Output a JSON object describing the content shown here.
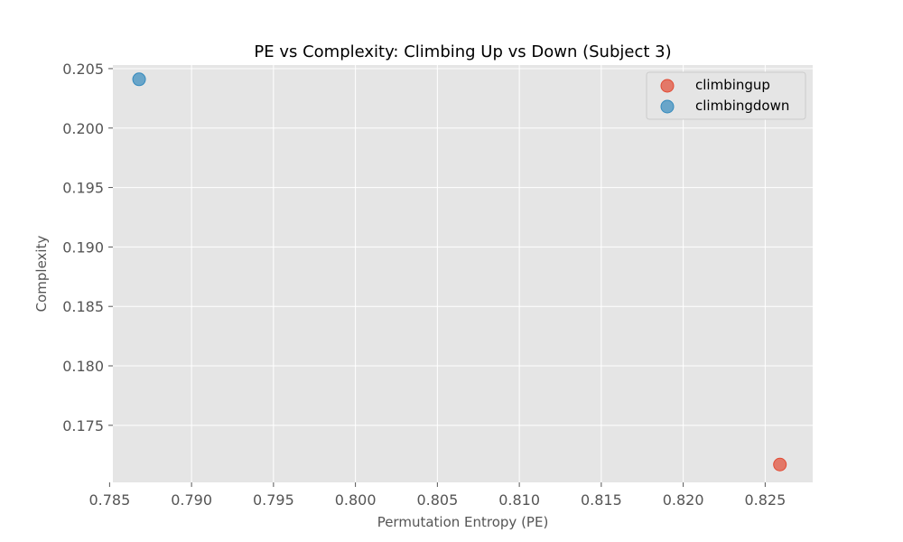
{
  "chart_data": {
    "type": "scatter",
    "title": "PE vs Complexity: Climbing Up vs Down (Subject 3)",
    "xlabel": "Permutation Entropy (PE)",
    "ylabel": "Complexity",
    "xlim": [
      0.7852,
      0.8279
    ],
    "ylim": [
      0.1702,
      0.2053
    ],
    "xticks": [
      "0.785",
      "0.790",
      "0.795",
      "0.800",
      "0.805",
      "0.810",
      "0.815",
      "0.820",
      "0.825"
    ],
    "yticks": [
      "0.175",
      "0.180",
      "0.185",
      "0.190",
      "0.195",
      "0.200",
      "0.205"
    ],
    "grid": true,
    "legend_position": "top-right",
    "series": [
      {
        "name": "climbingup",
        "color": "#E24A33",
        "points": [
          {
            "x": 0.8259,
            "y": 0.1717
          }
        ]
      },
      {
        "name": "climbingdown",
        "color": "#348ABD",
        "points": [
          {
            "x": 0.7868,
            "y": 0.2041
          }
        ]
      }
    ]
  }
}
